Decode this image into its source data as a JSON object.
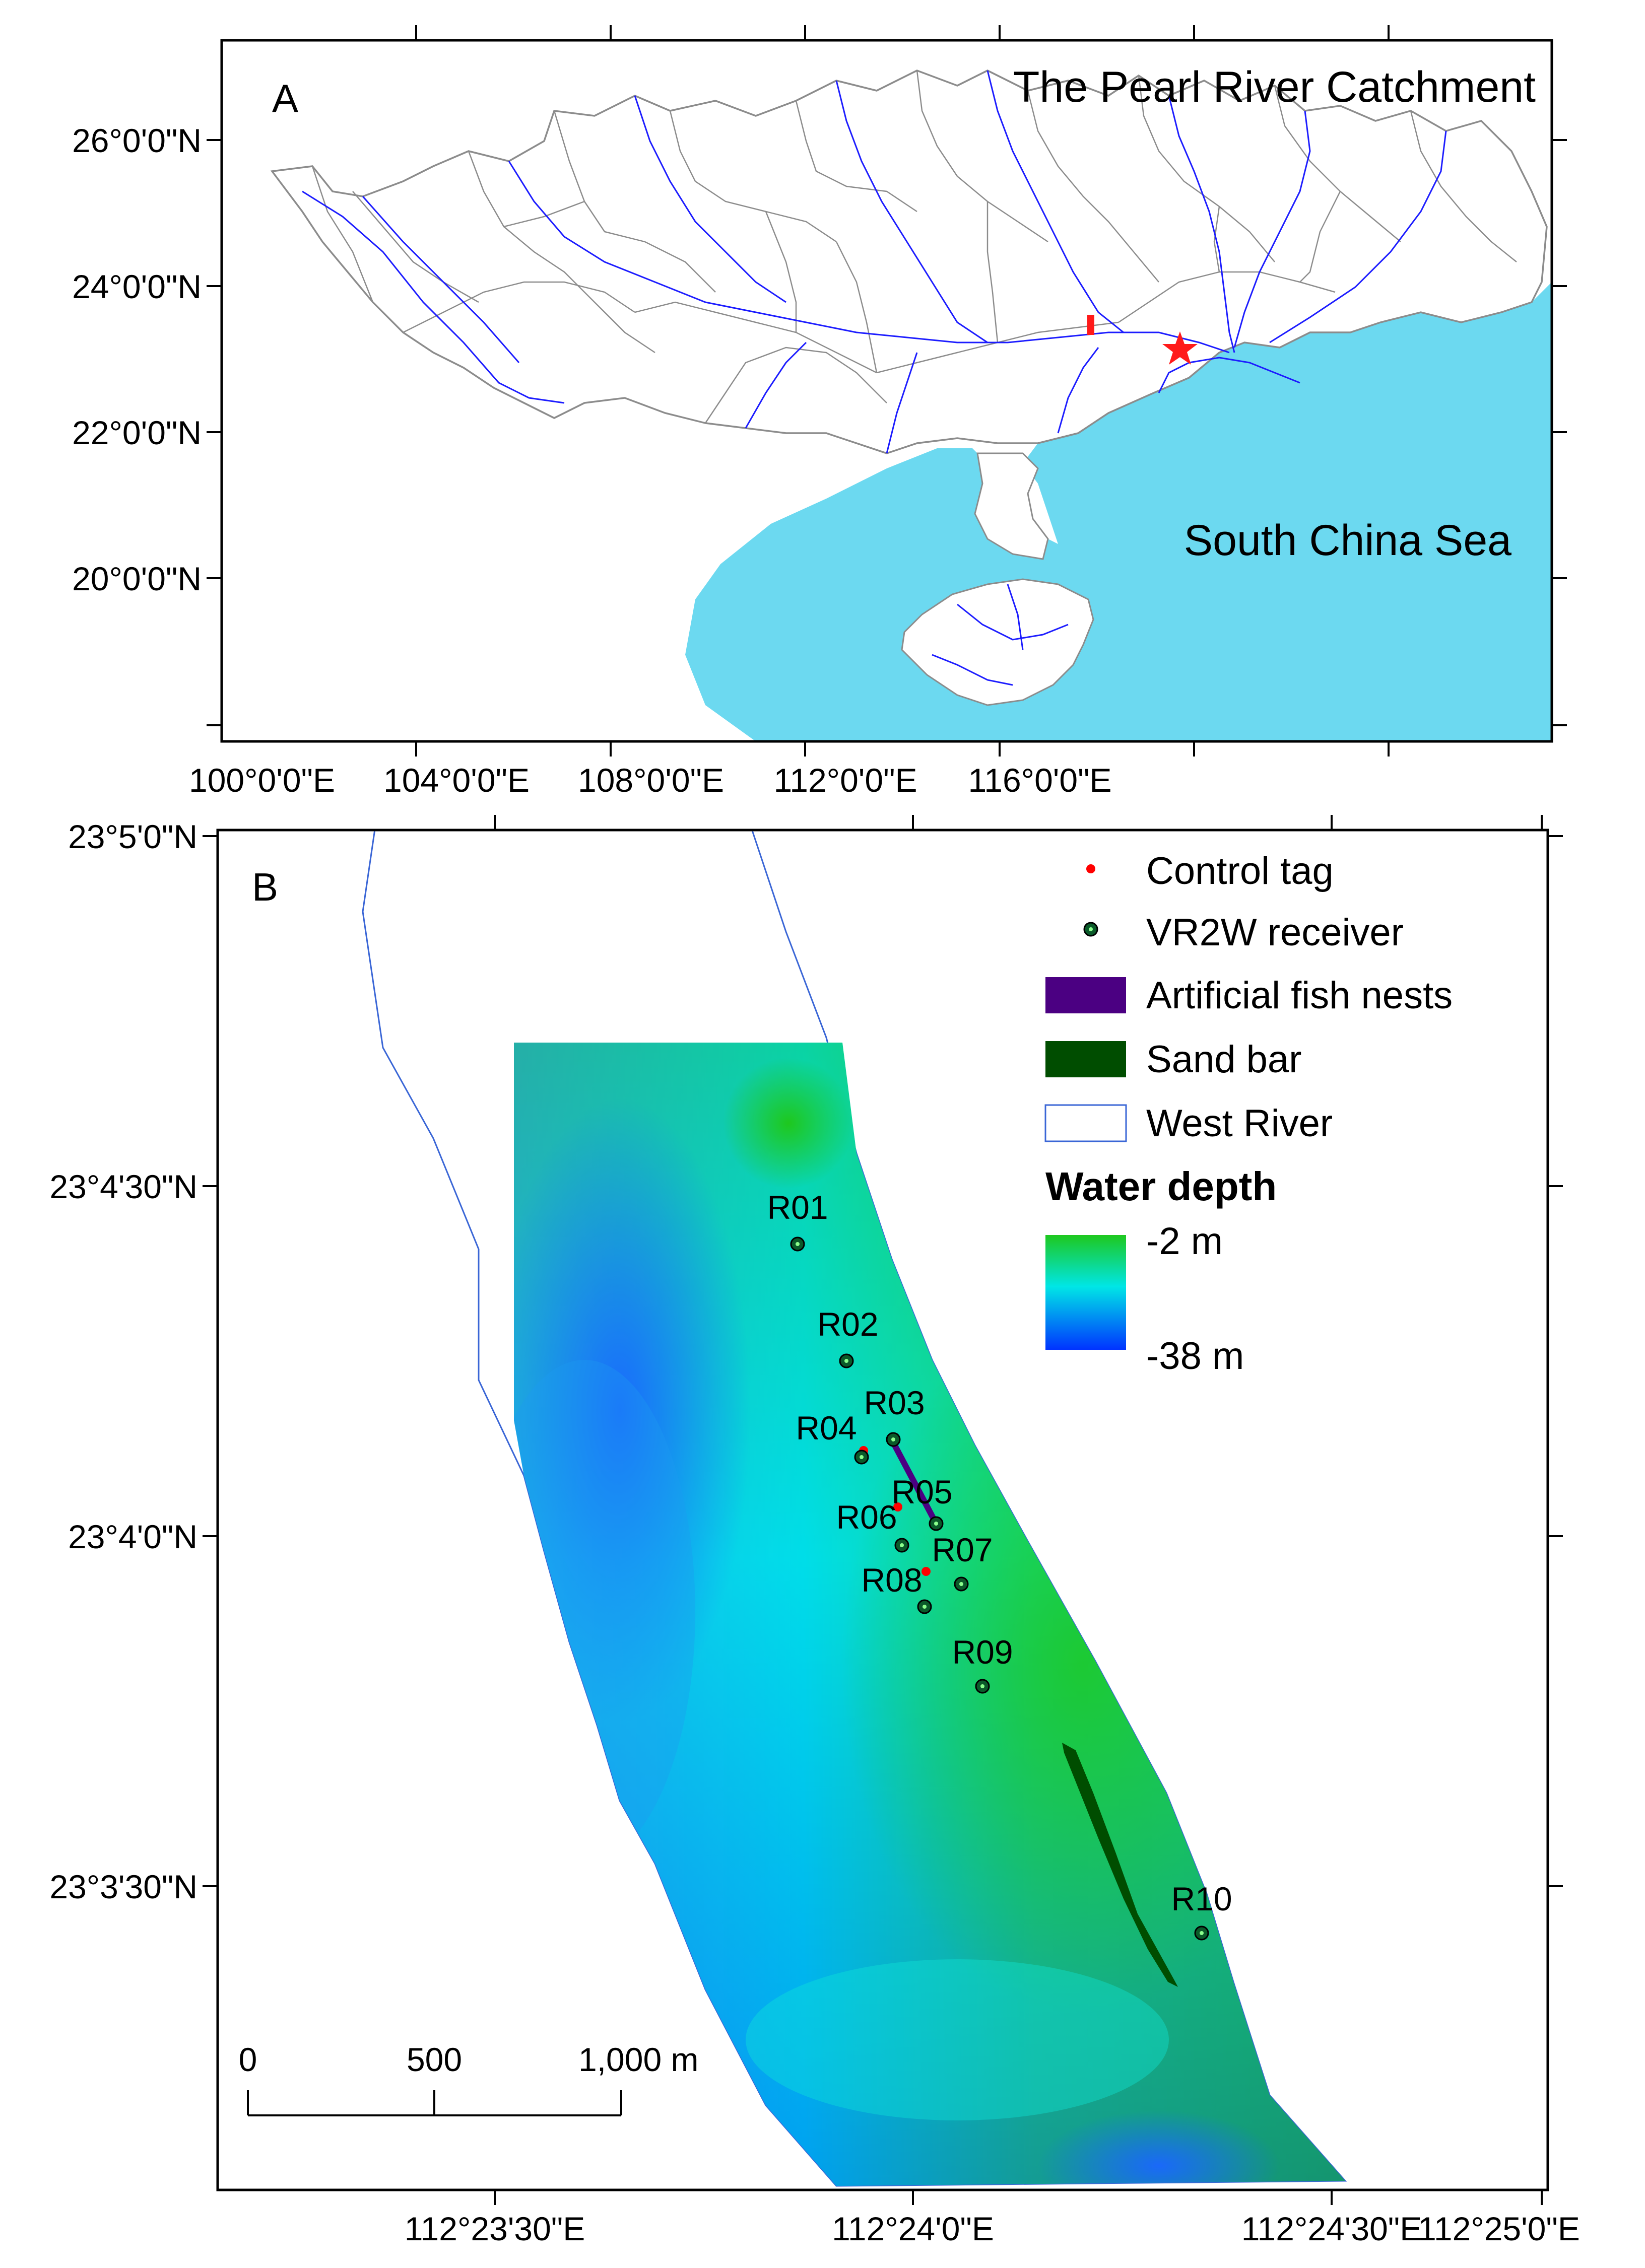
{
  "panel_a": {
    "letter": "A",
    "title": "The Pearl River Catchment",
    "sea_label": "South China Sea",
    "lat_ticks": [
      "26°0'0\"N",
      "24°0'0\"N",
      "22°0'0\"N",
      "20°0'0\"N"
    ],
    "lon_ticks": [
      "100°0'0\"E",
      "104°0'0\"E",
      "108°0'0\"E",
      "112°0'0\"E",
      "116°0'0\"E"
    ],
    "colors": {
      "sea": "#6cd9f0",
      "rivers": "#1c1cff",
      "boundaries": "#8c8c8c",
      "marker": "#ff1a1a"
    },
    "markers": [
      "study-site-rectangle",
      "star-icon"
    ]
  },
  "panel_b": {
    "letter": "B",
    "lat_ticks": [
      "23°5'0\"N",
      "23°4'30\"N",
      "23°4'0\"N",
      "23°3'30\"N"
    ],
    "lon_ticks": [
      "112°23'30\"E",
      "112°24'0\"E",
      "112°24'30\"E",
      "112°25'0\"E"
    ],
    "legend": {
      "control_tag": "Control tag",
      "receiver": "VR2W receiver",
      "fish_nests": "Artificial fish nests",
      "sand_bar": "Sand bar",
      "west_river": "West River",
      "depth_title": "Water depth",
      "depth_min": "-2 m",
      "depth_max": "-38 m"
    },
    "colors": {
      "shallow": "#1ec81e",
      "mid": "#00e6e6",
      "deep": "#0033ff",
      "sand_bar": "#004d00",
      "fish_nests": "#4b0082",
      "control_tag": "#ff0000",
      "receiver_fill": "#0a5a2a",
      "river_outline": "#3a66d6"
    },
    "receivers": [
      {
        "id": "R01"
      },
      {
        "id": "R02"
      },
      {
        "id": "R03"
      },
      {
        "id": "R04"
      },
      {
        "id": "R05"
      },
      {
        "id": "R06"
      },
      {
        "id": "R07"
      },
      {
        "id": "R08"
      },
      {
        "id": "R09"
      },
      {
        "id": "R10"
      }
    ],
    "scale_bar": {
      "labels": [
        "0",
        "500",
        "1,000 m"
      ]
    }
  }
}
